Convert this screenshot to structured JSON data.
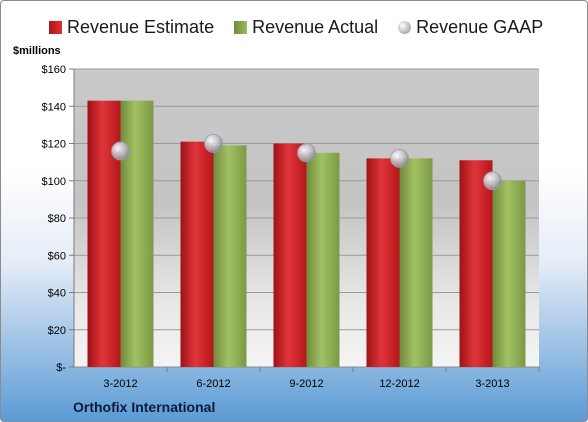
{
  "legend": {
    "estimate": "Revenue Estimate",
    "actual": "Revenue Actual",
    "gaap": "Revenue GAAP"
  },
  "unit_label": "$millions",
  "company": "Orthofix International",
  "colors": {
    "estimate": "#c0181d",
    "actual": "#8aaa4a",
    "gaap": "#c8c8d0"
  },
  "chart_data": {
    "type": "bar",
    "categories": [
      "3-2012",
      "6-2012",
      "9-2012",
      "12-2012",
      "3-2013"
    ],
    "series": [
      {
        "name": "Revenue Estimate",
        "values": [
          143,
          121,
          120,
          112,
          111
        ]
      },
      {
        "name": "Revenue Actual",
        "values": [
          143,
          119,
          115,
          112,
          100
        ]
      },
      {
        "name": "Revenue GAAP",
        "values": [
          116,
          120,
          115,
          112,
          100
        ]
      }
    ],
    "ylabel": "$millions",
    "ylim": [
      0,
      160
    ],
    "yticks": [
      "$-",
      "$20",
      "$40",
      "$60",
      "$80",
      "$100",
      "$120",
      "$140",
      "$160"
    ],
    "grid": true,
    "legend_position": "top"
  }
}
